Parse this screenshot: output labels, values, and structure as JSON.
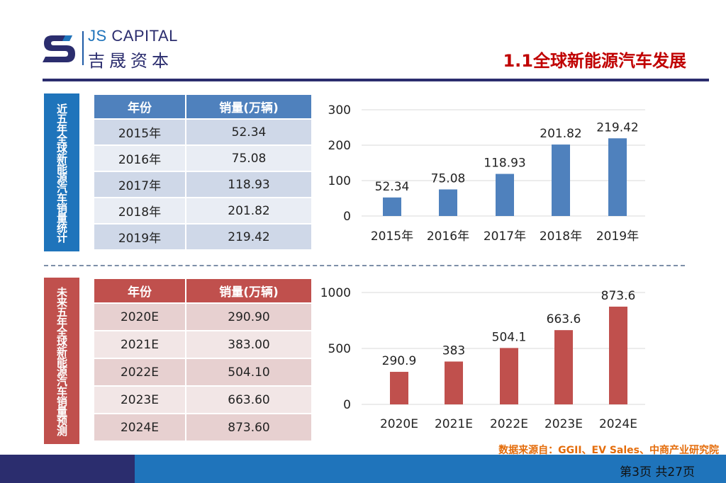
{
  "header": {
    "logo_en_1": "JS",
    "logo_en_2": "CAPITAL",
    "logo_cn": "吉晟资本",
    "title": "1.1全球新能源汽车发展"
  },
  "colors": {
    "blue": "#4f81bd",
    "red": "#c0504d",
    "navy": "#2b2d6e",
    "title_red": "#c00000",
    "source_orange": "#e46c0a"
  },
  "section1": {
    "label": "近五年全球新能源汽车销量统计",
    "headers": [
      "年份",
      "销量(万辆)"
    ],
    "rows": [
      [
        "2015年",
        "52.34"
      ],
      [
        "2016年",
        "75.08"
      ],
      [
        "2017年",
        "118.93"
      ],
      [
        "2018年",
        "201.82"
      ],
      [
        "2019年",
        "219.42"
      ]
    ]
  },
  "section2": {
    "label": "未来五年全球新能源汽车销量预测",
    "headers": [
      "年份",
      "销量(万辆)"
    ],
    "rows": [
      [
        "2020E",
        "290.90"
      ],
      [
        "2021E",
        "383.00"
      ],
      [
        "2022E",
        "504.10"
      ],
      [
        "2023E",
        "663.60"
      ],
      [
        "2024E",
        "873.60"
      ]
    ]
  },
  "chart_data": [
    {
      "type": "bar",
      "categories": [
        "2015年",
        "2016年",
        "2017年",
        "2018年",
        "2019年"
      ],
      "values": [
        52.34,
        75.08,
        118.93,
        201.82,
        219.42
      ],
      "data_labels": [
        "52.34",
        "75.08",
        "118.93",
        "201.82",
        "219.42"
      ],
      "ylim": [
        0,
        300
      ],
      "yticks": [
        0,
        100,
        200,
        300
      ],
      "grid": true,
      "color": "#4f81bd"
    },
    {
      "type": "bar",
      "categories": [
        "2020E",
        "2021E",
        "2022E",
        "2023E",
        "2024E"
      ],
      "values": [
        290.9,
        383,
        504.1,
        663.6,
        873.6
      ],
      "data_labels": [
        "290.9",
        "383",
        "504.1",
        "663.6",
        "873.6"
      ],
      "ylim": [
        0,
        1000
      ],
      "yticks": [
        0,
        500,
        1000
      ],
      "grid": true,
      "color": "#c0504d"
    }
  ],
  "footer": {
    "source": "数据来源自：GGII、EV Sales、中商产业研究院",
    "page": "第3页 共27页"
  }
}
